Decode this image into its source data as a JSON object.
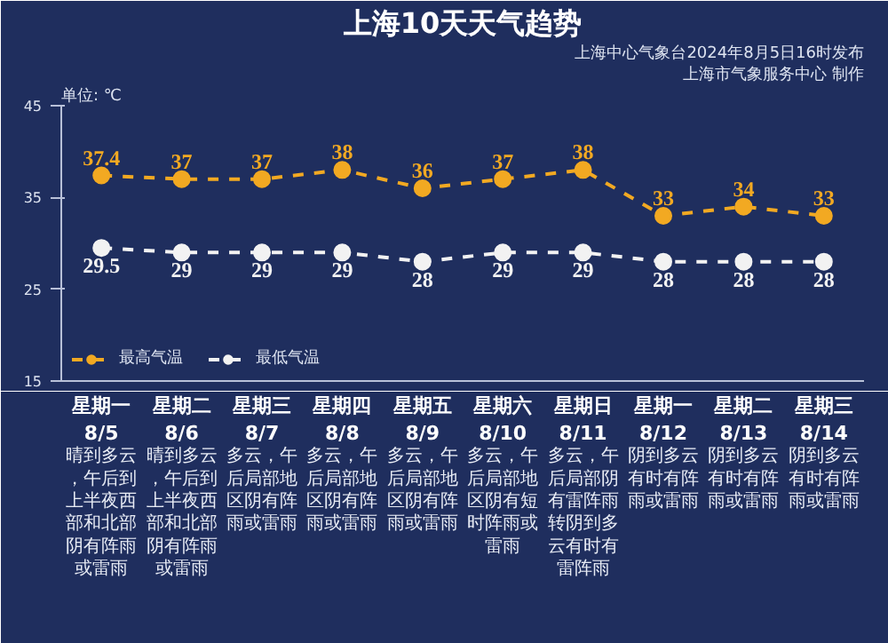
{
  "chart_data": {
    "type": "line",
    "title": "上海10天天气趋势",
    "ylabel": "单位: ℃",
    "categories": [
      "星期一\n8/5",
      "星期二\n8/6",
      "星期三\n8/7",
      "星期四\n8/8",
      "星期五\n8/9",
      "星期六\n8/10",
      "星期日\n8/11",
      "星期一\n8/12",
      "星期二\n8/13",
      "星期三\n8/14"
    ],
    "series": [
      {
        "name": "最高气温",
        "color": "#f2a922",
        "values": [
          37.4,
          37,
          37,
          38,
          36,
          37,
          38,
          33,
          34,
          33
        ]
      },
      {
        "name": "最低气温",
        "color": "#f2f2f2",
        "values": [
          29.5,
          29,
          29,
          29,
          28,
          29,
          29,
          28,
          28,
          28
        ]
      }
    ],
    "ylim": [
      15,
      45
    ],
    "yticks": [
      15,
      25,
      35,
      45
    ],
    "grid": false,
    "legend": "bottom left",
    "marker": "circle",
    "line_style": "dashed",
    "data_labels": true,
    "annotations": [
      "上海中心气象台2024年8月5日16时发布",
      "上海市气象服务中心 制作",
      "晴到多云，午后到上半夜西部和北部阴有阵雨或雷雨",
      "晴到多云，午后到上半夜西部和北部阴有阵雨或雷雨",
      "多云，午后局部地区阴有阵雨或雷雨",
      "多云，午后局部地区阴有阵雨或雷雨",
      "多云，午后局部地区阴有阵雨或雷雨",
      "多云，午后局部地区阴有短时阵雨或雷雨",
      "多云，午后局部阴有雷阵雨转阴到多云有时有雷阵雨",
      "阴到多云有时有阵雨或雷雨",
      "阴到多云有时有阵雨或雷雨",
      "阴到多云有时有阵雨或雷雨"
    ]
  }
}
